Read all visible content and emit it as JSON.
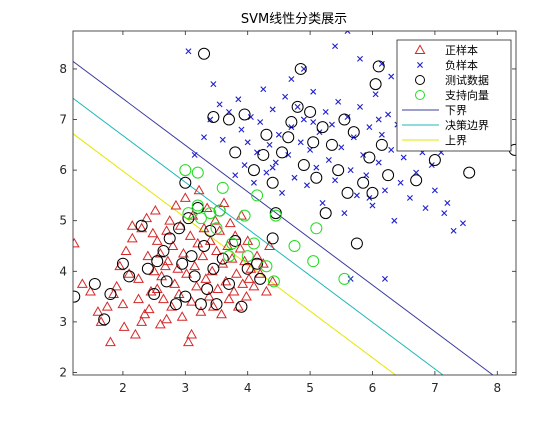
{
  "chart_data": {
    "type": "scatter",
    "title": "SVM线性分类展示",
    "xlabel": "",
    "ylabel": "",
    "xlim": [
      1.2,
      8.3
    ],
    "ylim": [
      1.95,
      8.75
    ],
    "xticks": [
      2,
      3,
      4,
      5,
      6,
      7,
      8
    ],
    "yticks": [
      2,
      3,
      4,
      5,
      6,
      7,
      8
    ],
    "grid": false,
    "legend_position": "top-right",
    "legend": [
      {
        "label": "正样本",
        "marker": "triangle",
        "color": "#d62728"
      },
      {
        "label": "负样本",
        "marker": "x",
        "color": "#1f1fd0"
      },
      {
        "label": "测试数据",
        "marker": "circle",
        "color": "#000000"
      },
      {
        "label": "支持向量",
        "marker": "circle",
        "color": "#22dd22"
      },
      {
        "label": "下界",
        "marker": "line",
        "color": "#3c3ca0"
      },
      {
        "label": "决策边界",
        "marker": "line",
        "color": "#1fb8b8"
      },
      {
        "label": "上界",
        "marker": "line",
        "color": "#e6e600"
      }
    ],
    "lines": [
      {
        "name": "下界",
        "color": "#3c3ca0",
        "points": [
          [
            1.2,
            8.15
          ],
          [
            7.93,
            1.95
          ]
        ]
      },
      {
        "name": "决策边界",
        "color": "#1fb8b8",
        "points": [
          [
            1.2,
            7.42
          ],
          [
            7.13,
            1.95
          ]
        ]
      },
      {
        "name": "上界",
        "color": "#e6e600",
        "points": [
          [
            1.2,
            6.72
          ],
          [
            6.37,
            1.95
          ]
        ]
      }
    ],
    "positive_samples": [
      [
        1.22,
        4.55
      ],
      [
        1.35,
        3.75
      ],
      [
        1.48,
        3.6
      ],
      [
        1.6,
        3.2
      ],
      [
        1.65,
        3.0
      ],
      [
        1.75,
        3.3
      ],
      [
        1.8,
        2.6
      ],
      [
        1.85,
        3.55
      ],
      [
        1.9,
        3.7
      ],
      [
        1.95,
        4.1
      ],
      [
        2.0,
        3.35
      ],
      [
        2.02,
        2.9
      ],
      [
        2.05,
        4.4
      ],
      [
        2.1,
        3.95
      ],
      [
        2.15,
        4.65
      ],
      [
        2.2,
        2.75
      ],
      [
        2.25,
        3.85
      ],
      [
        2.3,
        4.85
      ],
      [
        2.35,
        3.15
      ],
      [
        2.38,
        5.05
      ],
      [
        2.4,
        4.3
      ],
      [
        2.45,
        3.6
      ],
      [
        2.5,
        4.0
      ],
      [
        2.52,
        5.2
      ],
      [
        2.55,
        4.6
      ],
      [
        2.6,
        2.95
      ],
      [
        2.62,
        3.9
      ],
      [
        2.65,
        3.45
      ],
      [
        2.7,
        4.8
      ],
      [
        2.72,
        4.2
      ],
      [
        2.75,
        5.0
      ],
      [
        2.78,
        3.3
      ],
      [
        2.8,
        4.5
      ],
      [
        2.83,
        3.75
      ],
      [
        2.85,
        5.3
      ],
      [
        2.88,
        4.05
      ],
      [
        2.9,
        3.55
      ],
      [
        2.92,
        4.9
      ],
      [
        2.95,
        3.1
      ],
      [
        2.97,
        4.35
      ],
      [
        3.0,
        5.45
      ],
      [
        3.02,
        3.95
      ],
      [
        3.05,
        2.6
      ],
      [
        3.08,
        4.7
      ],
      [
        3.1,
        3.4
      ],
      [
        3.12,
        5.1
      ],
      [
        3.15,
        4.1
      ],
      [
        3.18,
        3.7
      ],
      [
        3.2,
        4.55
      ],
      [
        3.22,
        5.6
      ],
      [
        3.25,
        3.2
      ],
      [
        3.28,
        4.3
      ],
      [
        3.3,
        4.85
      ],
      [
        3.33,
        3.85
      ],
      [
        3.35,
        5.25
      ],
      [
        3.38,
        3.5
      ],
      [
        3.4,
        4.6
      ],
      [
        3.43,
        4.0
      ],
      [
        3.45,
        3.3
      ],
      [
        3.48,
        5.0
      ],
      [
        3.5,
        4.4
      ],
      [
        3.52,
        3.65
      ],
      [
        3.55,
        4.8
      ],
      [
        3.58,
        3.15
      ],
      [
        3.6,
        4.15
      ],
      [
        3.62,
        5.35
      ],
      [
        3.65,
        3.8
      ],
      [
        3.68,
        4.5
      ],
      [
        3.7,
        3.45
      ],
      [
        3.72,
        4.95
      ],
      [
        3.75,
        4.25
      ],
      [
        3.78,
        3.6
      ],
      [
        3.8,
        4.7
      ],
      [
        3.82,
        3.95
      ],
      [
        3.85,
        3.3
      ],
      [
        3.88,
        4.45
      ],
      [
        3.9,
        5.1
      ],
      [
        3.92,
        3.75
      ],
      [
        3.95,
        4.2
      ],
      [
        3.98,
        3.5
      ],
      [
        4.0,
        4.6
      ],
      [
        4.02,
        3.85
      ],
      [
        4.05,
        4.05
      ],
      [
        4.1,
        3.7
      ],
      [
        4.15,
        4.3
      ],
      [
        4.2,
        3.95
      ],
      [
        4.25,
        4.15
      ],
      [
        4.3,
        3.6
      ],
      [
        4.35,
        4.5
      ],
      [
        4.4,
        3.8
      ],
      [
        2.25,
        3.45
      ],
      [
        2.6,
        4.35
      ],
      [
        2.3,
        3.0
      ],
      [
        2.15,
        4.9
      ],
      [
        2.55,
        3.65
      ],
      [
        2.42,
        3.25
      ],
      [
        2.7,
        3.05
      ],
      [
        3.1,
        2.75
      ],
      [
        2.48,
        4.75
      ],
      [
        2.68,
        4.1
      ]
    ],
    "negative_samples": [
      [
        3.05,
        8.35
      ],
      [
        3.15,
        6.3
      ],
      [
        3.3,
        6.65
      ],
      [
        3.4,
        7.0
      ],
      [
        3.55,
        7.3
      ],
      [
        3.6,
        6.6
      ],
      [
        3.7,
        7.15
      ],
      [
        3.8,
        5.9
      ],
      [
        3.85,
        7.4
      ],
      [
        3.9,
        6.8
      ],
      [
        3.95,
        6.1
      ],
      [
        4.0,
        6.55
      ],
      [
        4.05,
        7.05
      ],
      [
        4.1,
        5.75
      ],
      [
        4.15,
        6.35
      ],
      [
        4.2,
        6.95
      ],
      [
        4.25,
        7.6
      ],
      [
        4.3,
        5.95
      ],
      [
        4.35,
        6.5
      ],
      [
        4.4,
        7.2
      ],
      [
        4.45,
        6.15
      ],
      [
        4.5,
        6.7
      ],
      [
        4.55,
        5.55
      ],
      [
        4.6,
        7.45
      ],
      [
        4.65,
        6.3
      ],
      [
        4.7,
        6.85
      ],
      [
        4.75,
        5.85
      ],
      [
        4.8,
        7.25
      ],
      [
        4.85,
        6.55
      ],
      [
        4.9,
        7.0
      ],
      [
        4.95,
        5.7
      ],
      [
        5.0,
        6.4
      ],
      [
        5.05,
        7.55
      ],
      [
        5.1,
        6.05
      ],
      [
        5.15,
        6.75
      ],
      [
        5.2,
        5.35
      ],
      [
        5.25,
        7.15
      ],
      [
        5.3,
        6.2
      ],
      [
        5.35,
        6.9
      ],
      [
        5.4,
        5.8
      ],
      [
        5.45,
        7.35
      ],
      [
        5.5,
        6.45
      ],
      [
        5.55,
        5.15
      ],
      [
        5.6,
        7.05
      ],
      [
        5.65,
        6.0
      ],
      [
        5.7,
        6.65
      ],
      [
        5.75,
        5.5
      ],
      [
        5.8,
        7.25
      ],
      [
        5.85,
        6.3
      ],
      [
        5.9,
        5.9
      ],
      [
        5.95,
        6.85
      ],
      [
        6.0,
        5.3
      ],
      [
        6.05,
        7.5
      ],
      [
        6.1,
        6.15
      ],
      [
        6.15,
        6.7
      ],
      [
        6.2,
        5.6
      ],
      [
        6.25,
        7.1
      ],
      [
        6.3,
        6.4
      ],
      [
        6.35,
        5.0
      ],
      [
        6.4,
        6.9
      ],
      [
        6.45,
        5.75
      ],
      [
        6.5,
        6.25
      ],
      [
        6.55,
        7.35
      ],
      [
        6.6,
        5.45
      ],
      [
        6.65,
        6.6
      ],
      [
        6.7,
        5.95
      ],
      [
        6.75,
        7.0
      ],
      [
        6.8,
        6.35
      ],
      [
        6.85,
        5.25
      ],
      [
        6.9,
        6.75
      ],
      [
        6.95,
        6.1
      ],
      [
        7.0,
        5.6
      ],
      [
        7.05,
        6.85
      ],
      [
        7.1,
        6.35
      ],
      [
        7.15,
        5.15
      ],
      [
        7.2,
        5.35
      ],
      [
        7.25,
        6.55
      ],
      [
        7.3,
        4.8
      ],
      [
        7.4,
        7.3
      ],
      [
        5.6,
        8.75
      ],
      [
        5.8,
        8.2
      ],
      [
        6.15,
        8.1
      ],
      [
        5.4,
        8.45
      ],
      [
        4.9,
        8.0
      ],
      [
        6.3,
        7.85
      ],
      [
        3.45,
        7.7
      ],
      [
        4.7,
        7.8
      ],
      [
        6.2,
        3.85
      ],
      [
        5.65,
        3.85
      ],
      [
        7.45,
        4.95
      ],
      [
        6.8,
        6.75
      ],
      [
        6.1,
        7.0
      ],
      [
        5.05,
        6.95
      ],
      [
        4.4,
        6.05
      ],
      [
        5.95,
        5.45
      ]
    ],
    "test_points": [
      [
        1.22,
        3.5
      ],
      [
        1.55,
        3.75
      ],
      [
        1.7,
        3.05
      ],
      [
        1.8,
        3.55
      ],
      [
        2.0,
        4.15
      ],
      [
        2.1,
        3.9
      ],
      [
        2.3,
        4.9
      ],
      [
        2.4,
        4.05
      ],
      [
        2.5,
        3.55
      ],
      [
        2.55,
        4.2
      ],
      [
        2.65,
        4.4
      ],
      [
        2.7,
        3.8
      ],
      [
        2.75,
        4.65
      ],
      [
        2.85,
        3.35
      ],
      [
        2.9,
        4.85
      ],
      [
        2.95,
        4.15
      ],
      [
        3.0,
        3.5
      ],
      [
        3.05,
        5.05
      ],
      [
        3.1,
        4.3
      ],
      [
        3.15,
        3.9
      ],
      [
        3.2,
        5.25
      ],
      [
        3.25,
        3.35
      ],
      [
        3.3,
        4.5
      ],
      [
        3.35,
        3.65
      ],
      [
        3.4,
        4.8
      ],
      [
        3.45,
        4.05
      ],
      [
        3.5,
        3.35
      ],
      [
        3.55,
        5.2
      ],
      [
        3.6,
        4.25
      ],
      [
        3.7,
        3.75
      ],
      [
        3.8,
        4.6
      ],
      [
        3.9,
        3.3
      ],
      [
        4.0,
        4.05
      ],
      [
        4.15,
        4.15
      ],
      [
        4.2,
        3.85
      ],
      [
        3.0,
        5.75
      ],
      [
        3.3,
        8.3
      ],
      [
        3.45,
        7.05
      ],
      [
        3.7,
        7.0
      ],
      [
        3.8,
        6.35
      ],
      [
        3.95,
        7.1
      ],
      [
        4.1,
        6.0
      ],
      [
        4.25,
        6.3
      ],
      [
        4.3,
        6.7
      ],
      [
        4.4,
        5.75
      ],
      [
        4.55,
        6.35
      ],
      [
        4.65,
        6.65
      ],
      [
        4.7,
        6.95
      ],
      [
        4.8,
        7.25
      ],
      [
        4.85,
        8.0
      ],
      [
        4.9,
        6.1
      ],
      [
        5.0,
        7.15
      ],
      [
        5.05,
        6.55
      ],
      [
        5.1,
        5.85
      ],
      [
        5.2,
        6.85
      ],
      [
        5.25,
        5.15
      ],
      [
        5.35,
        6.5
      ],
      [
        5.45,
        6.0
      ],
      [
        5.55,
        7.0
      ],
      [
        5.6,
        5.55
      ],
      [
        5.7,
        6.75
      ],
      [
        5.75,
        4.55
      ],
      [
        5.85,
        5.75
      ],
      [
        5.95,
        6.25
      ],
      [
        6.0,
        5.55
      ],
      [
        6.05,
        7.7
      ],
      [
        6.1,
        8.05
      ],
      [
        6.15,
        6.5
      ],
      [
        6.25,
        5.9
      ],
      [
        6.5,
        6.9
      ],
      [
        6.7,
        5.8
      ],
      [
        7.0,
        6.2
      ],
      [
        7.55,
        5.95
      ],
      [
        8.28,
        6.4
      ],
      [
        4.45,
        5.15
      ],
      [
        4.4,
        4.65
      ]
    ],
    "support_vectors": [
      [
        3.0,
        6.0
      ],
      [
        3.2,
        5.95
      ],
      [
        3.05,
        5.15
      ],
      [
        3.2,
        5.3
      ],
      [
        3.4,
        5.15
      ],
      [
        3.55,
        5.2
      ],
      [
        3.5,
        4.85
      ],
      [
        3.6,
        5.65
      ],
      [
        3.7,
        4.3
      ],
      [
        3.75,
        4.55
      ],
      [
        3.95,
        5.1
      ],
      [
        4.0,
        4.3
      ],
      [
        4.1,
        4.55
      ],
      [
        4.15,
        5.5
      ],
      [
        4.3,
        4.1
      ],
      [
        4.42,
        3.8
      ],
      [
        4.45,
        5.1
      ],
      [
        5.05,
        4.2
      ],
      [
        5.1,
        4.85
      ],
      [
        5.55,
        3.85
      ],
      [
        3.25,
        5.05
      ],
      [
        4.75,
        4.5
      ]
    ]
  }
}
